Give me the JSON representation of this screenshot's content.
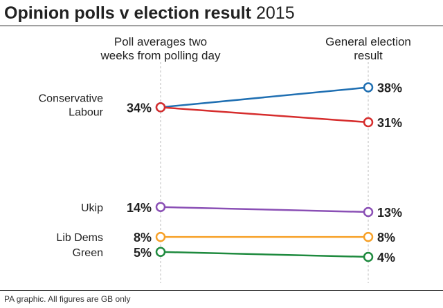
{
  "chart_data": {
    "type": "line",
    "title": "Opinion polls v election result",
    "title_year": "2015",
    "columns": [
      {
        "label_lines": [
          "Poll averages two",
          "weeks from polling day"
        ]
      },
      {
        "label_lines": [
          "General election",
          "result"
        ]
      }
    ],
    "series": [
      {
        "name": "Conservative",
        "poll": 34,
        "result": 38,
        "color": "#1f6fb2"
      },
      {
        "name": "Labour",
        "poll": 34,
        "result": 31,
        "color": "#d62d2d"
      },
      {
        "name": "Ukip",
        "poll": 14,
        "result": 13,
        "color": "#8a4fb5"
      },
      {
        "name": "Lib Dems",
        "poll": 8,
        "result": 8,
        "color": "#f7a128"
      },
      {
        "name": "Green",
        "poll": 5,
        "result": 4,
        "color": "#1e8a3e"
      }
    ],
    "value_suffix": "%",
    "ylim": [
      0,
      40
    ],
    "footnote": "PA graphic. All figures are GB only"
  }
}
